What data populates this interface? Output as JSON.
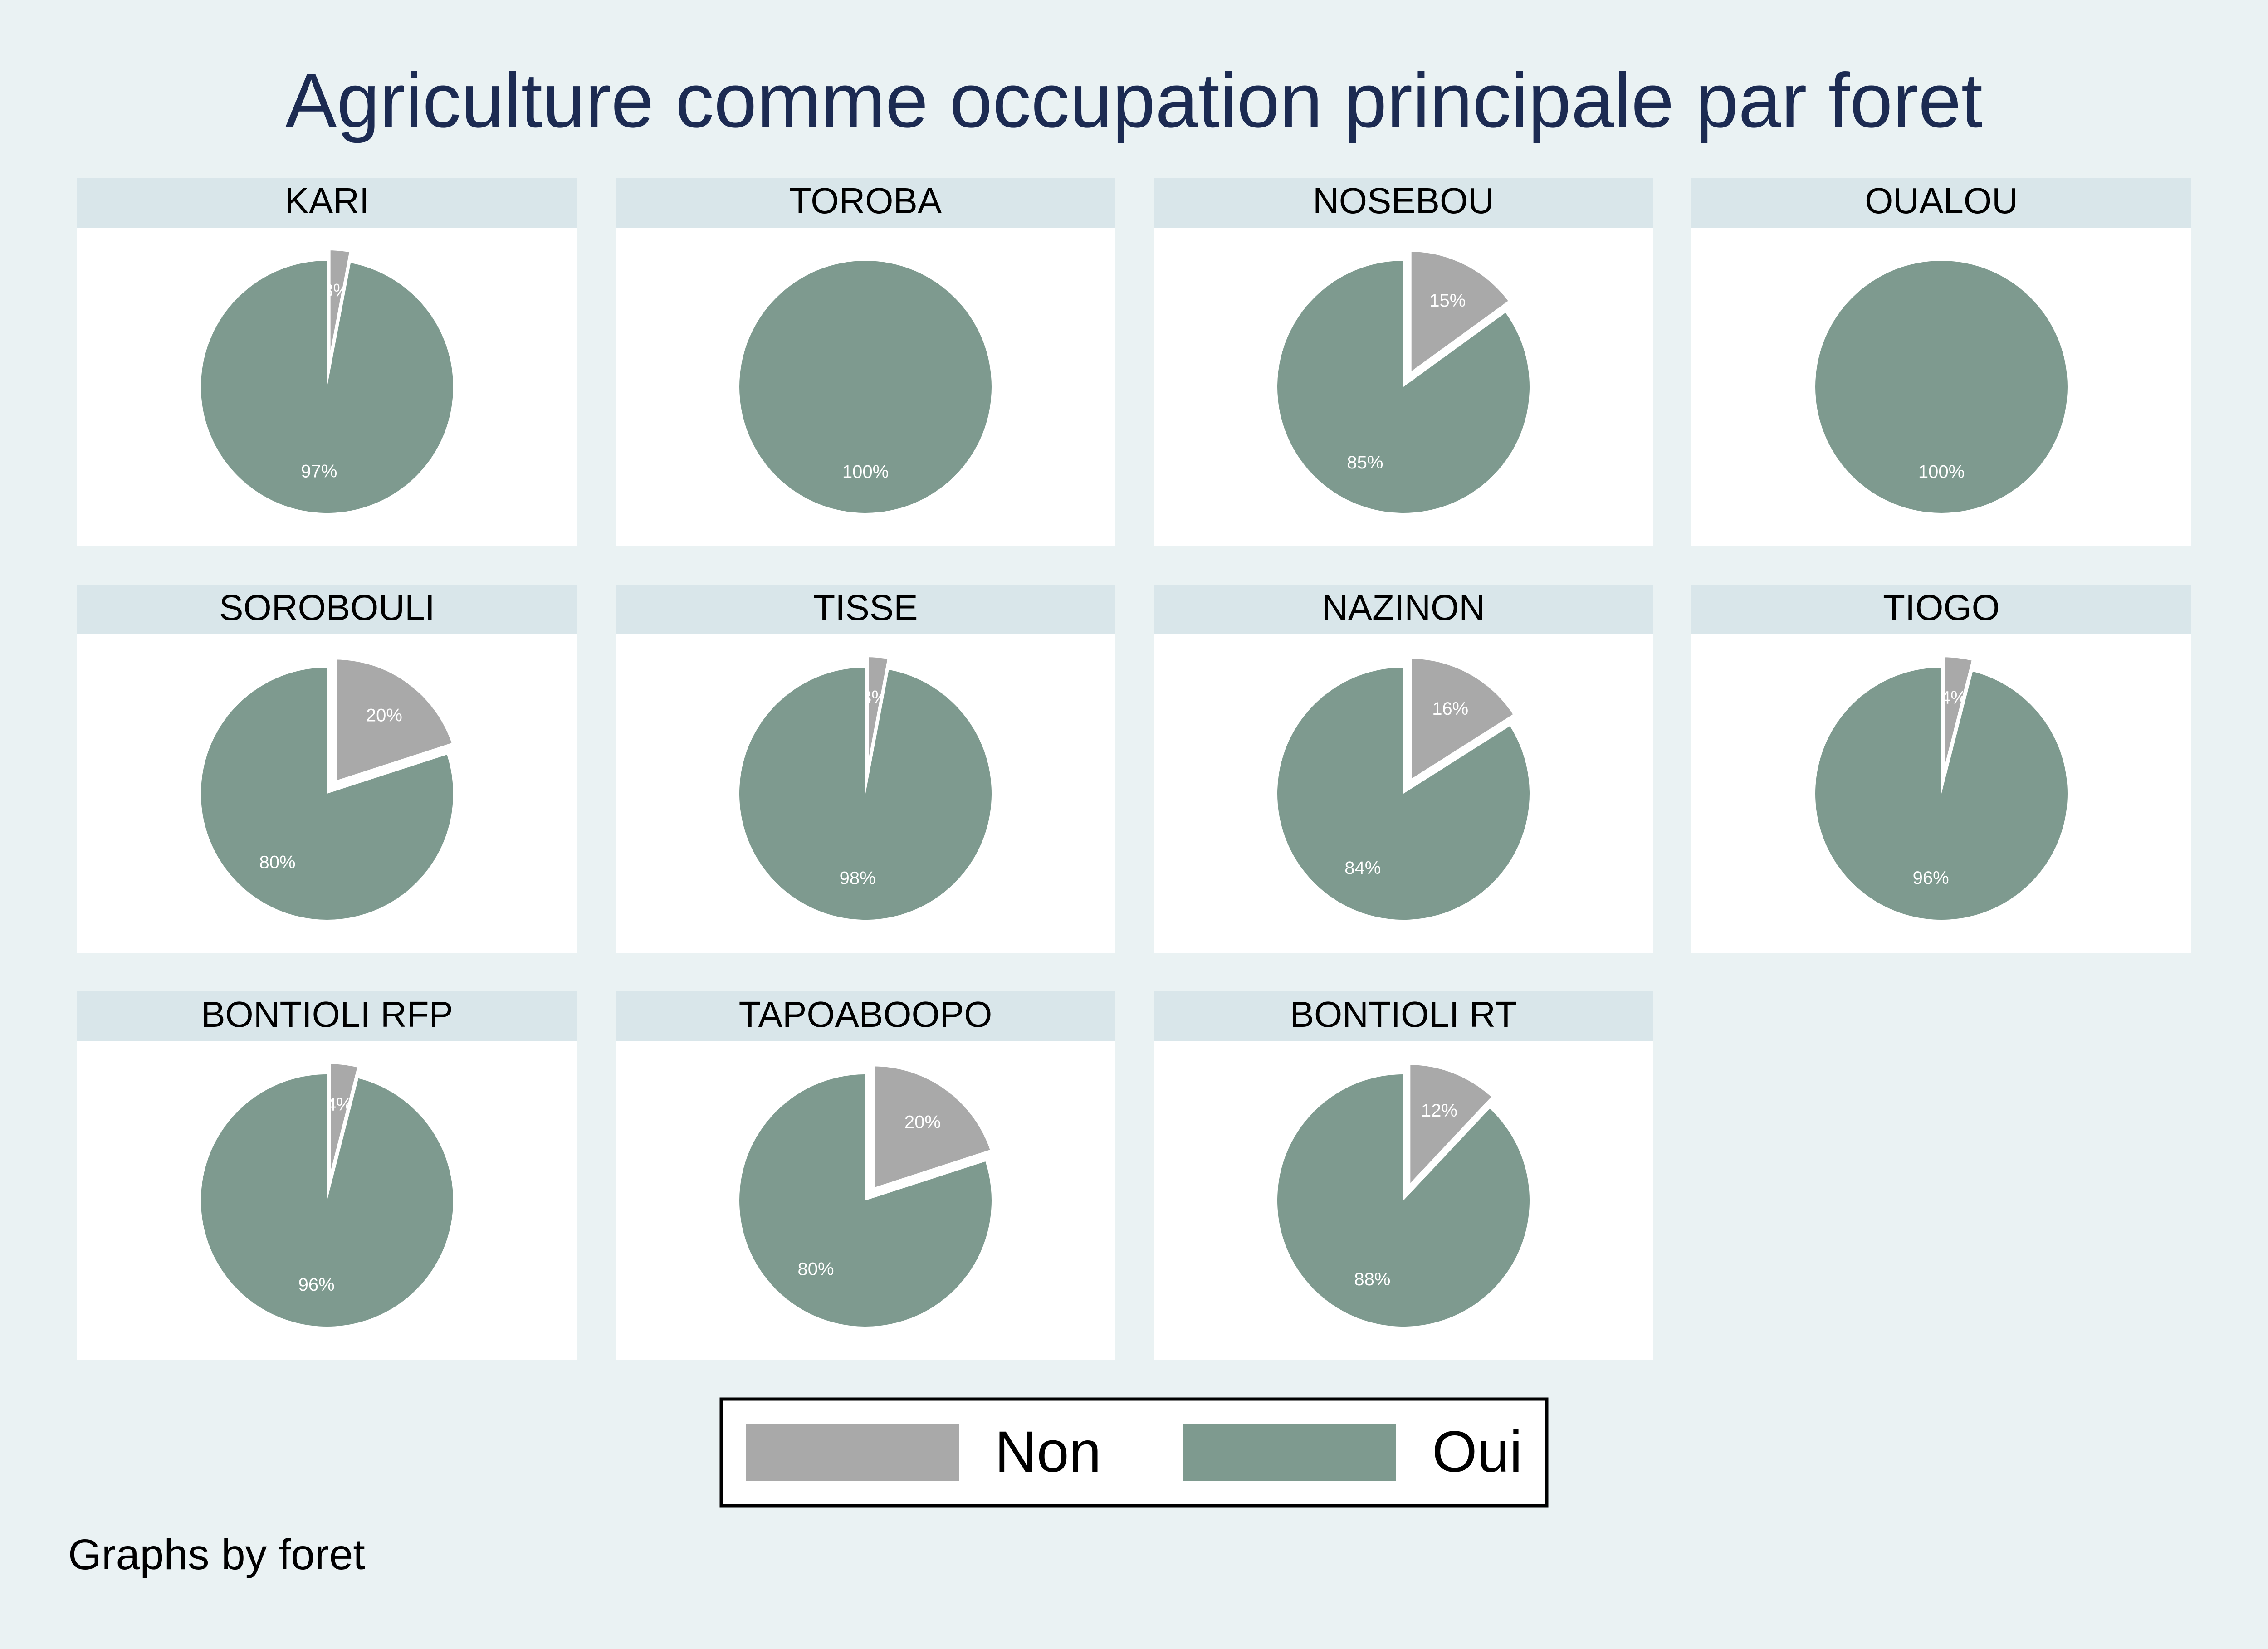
{
  "chart_data": {
    "type": "pie",
    "title": "Agriculture comme occupation principale par foret",
    "note": "Graphs by foret",
    "legend": {
      "position": "bottom",
      "entries": [
        {
          "name": "Non",
          "color": "#a9a9a9"
        },
        {
          "name": "Oui",
          "color": "#7e9a8f"
        }
      ]
    },
    "categories": [
      "Non",
      "Oui"
    ],
    "panels": [
      {
        "name": "KARI",
        "values": [
          3,
          97
        ]
      },
      {
        "name": "TOROBA",
        "values": [
          0,
          100
        ]
      },
      {
        "name": "NOSEBOU",
        "values": [
          15,
          85
        ]
      },
      {
        "name": "OUALOU",
        "values": [
          0,
          100
        ]
      },
      {
        "name": "SOROBOULI",
        "values": [
          20,
          80
        ]
      },
      {
        "name": "TISSE",
        "values": [
          3,
          98
        ]
      },
      {
        "name": "NAZINON",
        "values": [
          16,
          84
        ]
      },
      {
        "name": "TIOGO",
        "values": [
          4,
          96
        ]
      },
      {
        "name": "BONTIOLI RFP",
        "values": [
          4,
          96
        ]
      },
      {
        "name": "TAPOABOOPO",
        "values": [
          20,
          80
        ]
      },
      {
        "name": "BONTIOLI RT",
        "values": [
          12,
          88
        ]
      }
    ]
  }
}
